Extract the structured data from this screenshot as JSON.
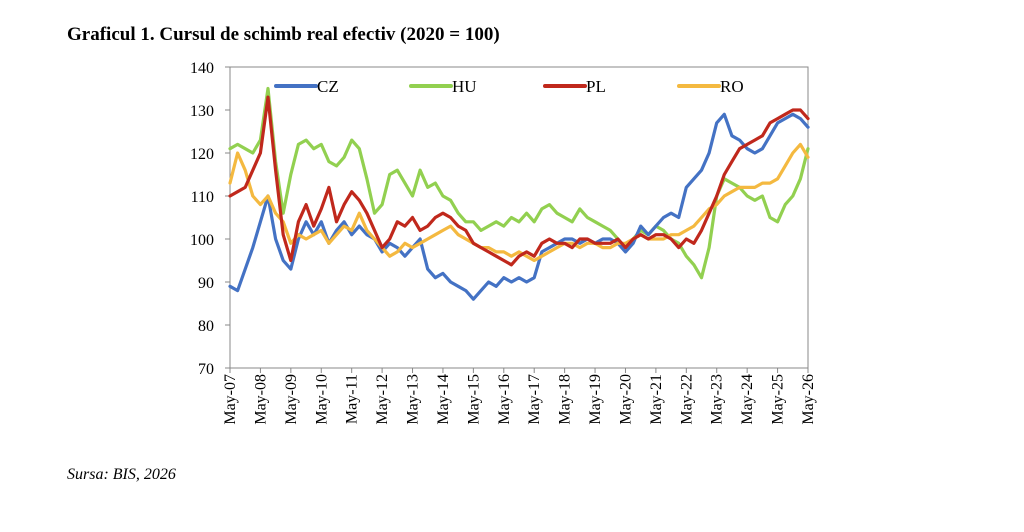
{
  "page": {
    "title": "Graficul 1. Cursul de schimb real efectiv (2020 = 100)",
    "source": "Sursa: BIS, 2026"
  },
  "chart_data": {
    "type": "line",
    "title": "Graficul 1. Cursul de schimb real efectiv (2020 = 100)",
    "xlabel": "",
    "ylabel": "",
    "ylim": [
      70,
      140
    ],
    "yticks": [
      70,
      80,
      90,
      100,
      110,
      120,
      130,
      140
    ],
    "xlim": [
      "2007-05",
      "2026-05"
    ],
    "xticks": [
      "May-07",
      "May-08",
      "May-09",
      "May-10",
      "May-11",
      "May-12",
      "May-13",
      "May-14",
      "May-15",
      "May-16",
      "May-17",
      "May-18",
      "May-19",
      "May-20",
      "May-21",
      "May-22",
      "May-23",
      "May-24",
      "May-25",
      "May-26"
    ],
    "grid": false,
    "legend_position": "top",
    "series": [
      {
        "name": "CZ",
        "color": "#4472C4",
        "x": [
          "2007-05",
          "2007-08",
          "2007-11",
          "2008-02",
          "2008-05",
          "2008-08",
          "2008-11",
          "2009-02",
          "2009-05",
          "2009-08",
          "2009-11",
          "2010-02",
          "2010-05",
          "2010-08",
          "2010-11",
          "2011-02",
          "2011-05",
          "2011-08",
          "2011-11",
          "2012-02",
          "2012-05",
          "2012-08",
          "2012-11",
          "2013-02",
          "2013-05",
          "2013-08",
          "2013-11",
          "2014-02",
          "2014-05",
          "2014-08",
          "2014-11",
          "2015-02",
          "2015-05",
          "2015-08",
          "2015-11",
          "2016-02",
          "2016-05",
          "2016-08",
          "2016-11",
          "2017-02",
          "2017-05",
          "2017-08",
          "2017-11",
          "2018-02",
          "2018-05",
          "2018-08",
          "2018-11",
          "2019-02",
          "2019-05",
          "2019-08",
          "2019-11",
          "2020-02",
          "2020-05",
          "2020-08",
          "2020-11",
          "2021-02",
          "2021-05",
          "2021-08",
          "2021-11",
          "2022-02",
          "2022-05",
          "2022-08",
          "2022-11",
          "2023-02",
          "2023-05",
          "2023-08",
          "2023-11",
          "2024-02",
          "2024-05",
          "2024-08",
          "2024-11",
          "2025-02",
          "2025-05",
          "2025-08",
          "2025-11",
          "2026-02",
          "2026-05"
        ],
        "values": [
          89,
          88,
          93,
          98,
          104,
          110,
          100,
          95,
          93,
          100,
          104,
          101,
          104,
          99,
          102,
          104,
          101,
          103,
          101,
          100,
          97,
          99,
          98,
          96,
          98,
          100,
          93,
          91,
          92,
          90,
          89,
          88,
          86,
          88,
          90,
          89,
          91,
          90,
          91,
          90,
          91,
          97,
          98,
          99,
          100,
          100,
          99,
          100,
          99,
          100,
          100,
          99,
          97,
          99,
          103,
          101,
          103,
          105,
          106,
          105,
          112,
          114,
          116,
          120,
          127,
          129,
          124,
          123,
          121,
          120,
          121,
          124,
          127,
          128,
          129,
          128,
          126
        ]
      },
      {
        "name": "HU",
        "color": "#92D050",
        "x": [
          "2007-05",
          "2007-08",
          "2007-11",
          "2008-02",
          "2008-05",
          "2008-08",
          "2008-11",
          "2009-02",
          "2009-05",
          "2009-08",
          "2009-11",
          "2010-02",
          "2010-05",
          "2010-08",
          "2010-11",
          "2011-02",
          "2011-05",
          "2011-08",
          "2011-11",
          "2012-02",
          "2012-05",
          "2012-08",
          "2012-11",
          "2013-02",
          "2013-05",
          "2013-08",
          "2013-11",
          "2014-02",
          "2014-05",
          "2014-08",
          "2014-11",
          "2015-02",
          "2015-05",
          "2015-08",
          "2015-11",
          "2016-02",
          "2016-05",
          "2016-08",
          "2016-11",
          "2017-02",
          "2017-05",
          "2017-08",
          "2017-11",
          "2018-02",
          "2018-05",
          "2018-08",
          "2018-11",
          "2019-02",
          "2019-05",
          "2019-08",
          "2019-11",
          "2020-02",
          "2020-05",
          "2020-08",
          "2020-11",
          "2021-02",
          "2021-05",
          "2021-08",
          "2021-11",
          "2022-02",
          "2022-05",
          "2022-08",
          "2022-11",
          "2023-02",
          "2023-05",
          "2023-08",
          "2023-11",
          "2024-02",
          "2024-05",
          "2024-08",
          "2024-11",
          "2025-02",
          "2025-05",
          "2025-08",
          "2025-11",
          "2026-02",
          "2026-05"
        ],
        "values": [
          121,
          122,
          121,
          120,
          123,
          135,
          118,
          106,
          115,
          122,
          123,
          121,
          122,
          118,
          117,
          119,
          123,
          121,
          114,
          106,
          108,
          115,
          116,
          113,
          110,
          116,
          112,
          113,
          110,
          109,
          106,
          104,
          104,
          102,
          103,
          104,
          103,
          105,
          104,
          106,
          104,
          107,
          108,
          106,
          105,
          104,
          107,
          105,
          104,
          103,
          102,
          100,
          98,
          100,
          102,
          101,
          103,
          102,
          100,
          99,
          96,
          94,
          91,
          98,
          110,
          114,
          113,
          112,
          110,
          109,
          110,
          105,
          104,
          108,
          110,
          114,
          121
        ]
      },
      {
        "name": "PL",
        "color": "#C0281C",
        "x": [
          "2007-05",
          "2007-08",
          "2007-11",
          "2008-02",
          "2008-05",
          "2008-08",
          "2008-11",
          "2009-02",
          "2009-05",
          "2009-08",
          "2009-11",
          "2010-02",
          "2010-05",
          "2010-08",
          "2010-11",
          "2011-02",
          "2011-05",
          "2011-08",
          "2011-11",
          "2012-02",
          "2012-05",
          "2012-08",
          "2012-11",
          "2013-02",
          "2013-05",
          "2013-08",
          "2013-11",
          "2014-02",
          "2014-05",
          "2014-08",
          "2014-11",
          "2015-02",
          "2015-05",
          "2015-08",
          "2015-11",
          "2016-02",
          "2016-05",
          "2016-08",
          "2016-11",
          "2017-02",
          "2017-05",
          "2017-08",
          "2017-11",
          "2018-02",
          "2018-05",
          "2018-08",
          "2018-11",
          "2019-02",
          "2019-05",
          "2019-08",
          "2019-11",
          "2020-02",
          "2020-05",
          "2020-08",
          "2020-11",
          "2021-02",
          "2021-05",
          "2021-08",
          "2021-11",
          "2022-02",
          "2022-05",
          "2022-08",
          "2022-11",
          "2023-02",
          "2023-05",
          "2023-08",
          "2023-11",
          "2024-02",
          "2024-05",
          "2024-08",
          "2024-11",
          "2025-02",
          "2025-05",
          "2025-08",
          "2025-11",
          "2026-02",
          "2026-05"
        ],
        "values": [
          110,
          111,
          112,
          116,
          120,
          133,
          116,
          101,
          95,
          104,
          108,
          103,
          107,
          112,
          104,
          108,
          111,
          109,
          106,
          102,
          98,
          100,
          104,
          103,
          105,
          102,
          103,
          105,
          106,
          105,
          103,
          102,
          99,
          98,
          97,
          96,
          95,
          94,
          96,
          97,
          96,
          99,
          100,
          99,
          99,
          98,
          100,
          100,
          99,
          99,
          99,
          100,
          98,
          100,
          101,
          100,
          101,
          101,
          100,
          98,
          100,
          99,
          102,
          106,
          110,
          115,
          118,
          121,
          122,
          123,
          124,
          127,
          128,
          129,
          130,
          130,
          128
        ]
      },
      {
        "name": "RO",
        "color": "#F4B940",
        "x": [
          "2007-05",
          "2007-08",
          "2007-11",
          "2008-02",
          "2008-05",
          "2008-08",
          "2008-11",
          "2009-02",
          "2009-05",
          "2009-08",
          "2009-11",
          "2010-02",
          "2010-05",
          "2010-08",
          "2010-11",
          "2011-02",
          "2011-05",
          "2011-08",
          "2011-11",
          "2012-02",
          "2012-05",
          "2012-08",
          "2012-11",
          "2013-02",
          "2013-05",
          "2013-08",
          "2013-11",
          "2014-02",
          "2014-05",
          "2014-08",
          "2014-11",
          "2015-02",
          "2015-05",
          "2015-08",
          "2015-11",
          "2016-02",
          "2016-05",
          "2016-08",
          "2016-11",
          "2017-02",
          "2017-05",
          "2017-08",
          "2017-11",
          "2018-02",
          "2018-05",
          "2018-08",
          "2018-11",
          "2019-02",
          "2019-05",
          "2019-08",
          "2019-11",
          "2020-02",
          "2020-05",
          "2020-08",
          "2020-11",
          "2021-02",
          "2021-05",
          "2021-08",
          "2021-11",
          "2022-02",
          "2022-05",
          "2022-08",
          "2022-11",
          "2023-02",
          "2023-05",
          "2023-08",
          "2023-11",
          "2024-02",
          "2024-05",
          "2024-08",
          "2024-11",
          "2025-02",
          "2025-05",
          "2025-08",
          "2025-11",
          "2026-02",
          "2026-05"
        ],
        "values": [
          113,
          120,
          116,
          110,
          108,
          110,
          106,
          104,
          99,
          101,
          100,
          101,
          102,
          99,
          101,
          103,
          102,
          106,
          102,
          100,
          98,
          96,
          97,
          99,
          98,
          99,
          100,
          101,
          102,
          103,
          101,
          100,
          99,
          98,
          98,
          97,
          97,
          96,
          97,
          96,
          95,
          96,
          97,
          98,
          99,
          99,
          98,
          99,
          99,
          98,
          98,
          99,
          99,
          100,
          101,
          100,
          100,
          100,
          101,
          101,
          102,
          103,
          105,
          107,
          108,
          110,
          111,
          112,
          112,
          112,
          113,
          113,
          114,
          117,
          120,
          122,
          119
        ]
      }
    ]
  }
}
